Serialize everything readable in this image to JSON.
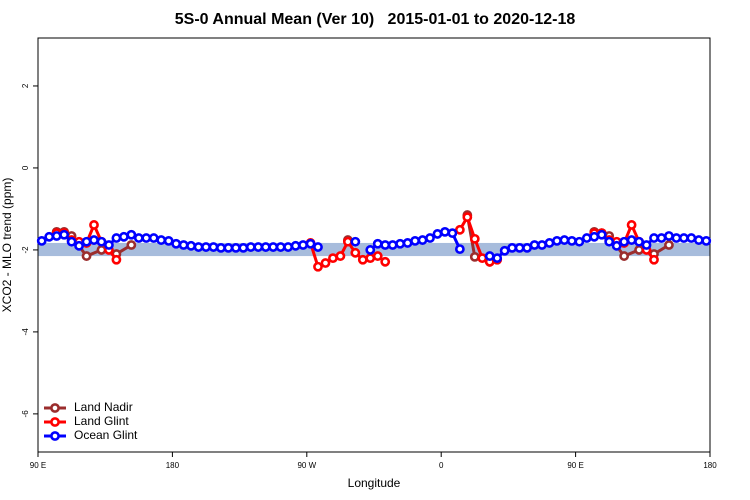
{
  "chart_data": {
    "type": "line",
    "title": "5S-0 Annual Mean (Ver 10)   2015-01-01 to 2020-12-18",
    "x_label": "Longitude",
    "y_label": "XCO2 - MLO trend (ppm)",
    "xlim": [
      90,
      540
    ],
    "xticks": [
      {
        "value": 90,
        "label": "90 E"
      },
      {
        "value": 180,
        "label": "180"
      },
      {
        "value": 270,
        "label": "90 W"
      },
      {
        "value": 360,
        "label": "0"
      },
      {
        "value": 450,
        "label": "90 E"
      },
      {
        "value": 540,
        "label": "180"
      }
    ],
    "ylim": [
      -6.93,
      3.17
    ],
    "yticks": [
      2,
      0,
      -2,
      -4,
      -6
    ],
    "band": {
      "range": [
        -2.15,
        -1.83
      ],
      "color": "#a7bcdc"
    },
    "legend": "bottom-left",
    "series": [
      {
        "name": "Land Nadir",
        "color": "#9b2d2d",
        "x": [
          102.5,
          107.5,
          112.5,
          122.5,
          132.5,
          142.5,
          152.5,
          157.5,
          297.5,
          302.5,
          377.5,
          382.5,
          392.5,
          397.5,
          462.5,
          467.5,
          472.5,
          482.5,
          492.5,
          502.5,
          512.5
        ],
        "values": [
          -1.56,
          -1.56,
          -1.66,
          -2.15,
          -2.0,
          -2.1,
          -1.88,
          null,
          -1.76,
          null,
          -1.15,
          -2.17,
          -2.29,
          null,
          -1.56,
          -1.59,
          -1.66,
          -2.15,
          -2.0,
          -2.1,
          -1.88
        ]
      },
      {
        "name": "Land Glint",
        "color": "#ff0000",
        "x": [
          102.5,
          107.5,
          112.5,
          117.5,
          122.5,
          127.5,
          132.5,
          137.5,
          142.5,
          147.5,
          272.5,
          277.5,
          282.5,
          287.5,
          292.5,
          297.5,
          302.5,
          307.5,
          312.5,
          317.5,
          322.5,
          327.5,
          372.5,
          377.5,
          382.5,
          387.5,
          392.5,
          397.5,
          402.5,
          462.5,
          467.5,
          472.5,
          477.5,
          482.5,
          487.5,
          492.5,
          497.5,
          502.5
        ],
        "values": [
          -1.59,
          -1.59,
          -1.76,
          -1.8,
          -1.83,
          -1.39,
          -1.8,
          -2.0,
          -2.24,
          null,
          -1.83,
          -2.41,
          -2.32,
          -2.2,
          -2.15,
          -1.8,
          -2.07,
          -2.24,
          -2.2,
          -2.15,
          -2.29,
          null,
          -1.51,
          -1.2,
          -1.73,
          -2.2,
          -2.29,
          -2.24,
          null,
          -1.59,
          -1.59,
          -1.76,
          -1.8,
          -1.83,
          -1.39,
          -1.8,
          -2.0,
          -2.24
        ]
      },
      {
        "name": "Ocean Glint",
        "color": "#0000ff",
        "x": [
          92.5,
          97.5,
          102.5,
          107.5,
          112.5,
          117.5,
          122.5,
          127.5,
          132.5,
          137.5,
          142.5,
          147.5,
          152.5,
          157.5,
          162.5,
          167.5,
          172.5,
          177.5,
          182.5,
          187.5,
          192.5,
          197.5,
          202.5,
          207.5,
          212.5,
          217.5,
          222.5,
          227.5,
          232.5,
          237.5,
          242.5,
          247.5,
          252.5,
          257.5,
          262.5,
          267.5,
          272.5,
          277.5,
          282.5,
          287.5,
          292.5,
          297.5,
          302.5,
          307.5,
          312.5,
          317.5,
          322.5,
          327.5,
          332.5,
          337.5,
          342.5,
          347.5,
          352.5,
          357.5,
          362.5,
          367.5,
          372.5,
          377.5,
          382.5,
          387.5,
          392.5,
          397.5,
          402.5,
          407.5,
          412.5,
          417.5,
          422.5,
          427.5,
          432.5,
          437.5,
          442.5,
          447.5,
          452.5,
          457.5,
          462.5,
          467.5,
          472.5,
          477.5,
          482.5,
          487.5,
          492.5,
          497.5,
          502.5,
          507.5,
          512.5,
          517.5,
          522.5,
          527.5,
          532.5,
          537.5
        ],
        "values": [
          -1.78,
          -1.68,
          -1.66,
          -1.63,
          -1.8,
          -1.9,
          -1.8,
          -1.76,
          -1.8,
          -1.88,
          -1.71,
          -1.68,
          -1.63,
          -1.71,
          -1.71,
          -1.71,
          -1.76,
          -1.78,
          -1.85,
          -1.88,
          -1.9,
          -1.93,
          -1.93,
          -1.93,
          -1.95,
          -1.95,
          -1.95,
          -1.95,
          -1.93,
          -1.93,
          -1.93,
          -1.93,
          -1.93,
          -1.93,
          -1.9,
          -1.88,
          -1.85,
          -1.93,
          null,
          null,
          null,
          null,
          -1.8,
          null,
          -2.0,
          -1.85,
          -1.88,
          -1.88,
          -1.85,
          -1.83,
          -1.78,
          -1.76,
          -1.71,
          -1.61,
          -1.56,
          -1.59,
          -1.98,
          null,
          null,
          null,
          -2.15,
          -2.2,
          -2.02,
          -1.95,
          -1.95,
          -1.95,
          -1.88,
          -1.88,
          -1.83,
          -1.78,
          -1.76,
          -1.78,
          -1.8,
          -1.71,
          -1.68,
          -1.63,
          -1.8,
          -1.9,
          -1.8,
          -1.76,
          -1.8,
          -1.88,
          -1.71,
          -1.71,
          -1.66,
          -1.71,
          -1.71,
          -1.71,
          -1.76,
          -1.78
        ]
      }
    ]
  }
}
